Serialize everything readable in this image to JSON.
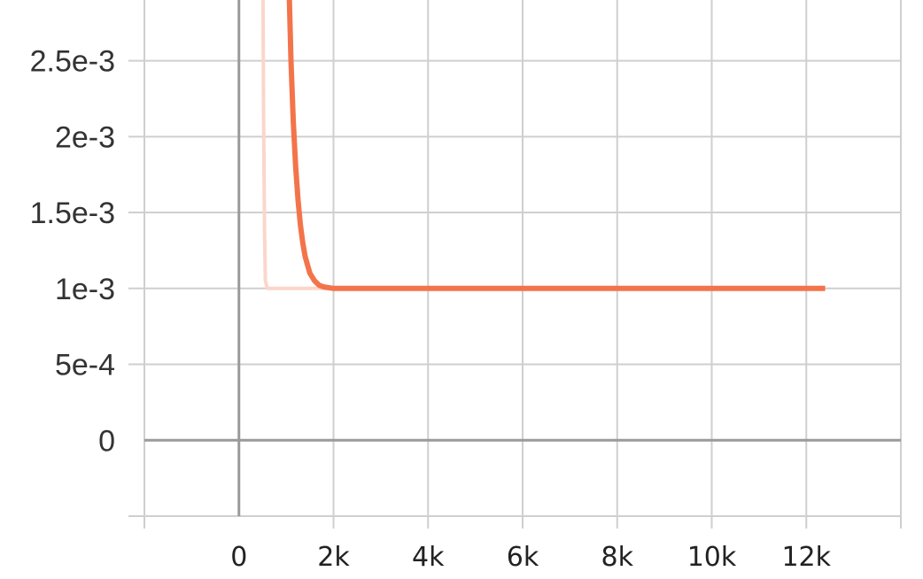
{
  "chart_data": {
    "type": "line",
    "xlabel": "",
    "ylabel": "",
    "xlim": [
      -2000,
      14000
    ],
    "ylim": [
      -0.0005,
      0.0029
    ],
    "x_ticks": [
      0,
      2000,
      4000,
      6000,
      8000,
      10000,
      12000
    ],
    "x_tick_labels": [
      "0",
      "2k",
      "4k",
      "6k",
      "8k",
      "10k",
      "12k"
    ],
    "y_ticks": [
      0,
      0.0005,
      0.001,
      0.0015,
      0.002,
      0.0025
    ],
    "y_tick_labels": [
      "0",
      "5e-4",
      "1e-3",
      "1.5e-3",
      "2e-3",
      "2.5e-3"
    ],
    "grid": true,
    "series": [
      {
        "role": "raw",
        "color": "#fbd6cb",
        "x": [
          500,
          520,
          540,
          560,
          600,
          800,
          1000,
          1500,
          2000
        ],
        "y": [
          0.0035,
          0.0022,
          0.0014,
          0.00105,
          0.001,
          0.001,
          0.001,
          0.001,
          0.001
        ]
      },
      {
        "role": "smoothed",
        "color": "#f3744a",
        "x": [
          1050,
          1100,
          1150,
          1200,
          1250,
          1300,
          1350,
          1400,
          1500,
          1600,
          1700,
          1800,
          2000,
          2200,
          2500,
          3000,
          4000,
          6000,
          8000,
          10000,
          12000,
          12400
        ],
        "y": [
          0.0031,
          0.0025,
          0.0021,
          0.0018,
          0.00158,
          0.00142,
          0.0013,
          0.00121,
          0.0011,
          0.00105,
          0.00102,
          0.00101,
          0.001,
          0.001,
          0.001,
          0.001,
          0.001,
          0.001,
          0.001,
          0.001,
          0.001,
          0.001
        ]
      }
    ]
  }
}
